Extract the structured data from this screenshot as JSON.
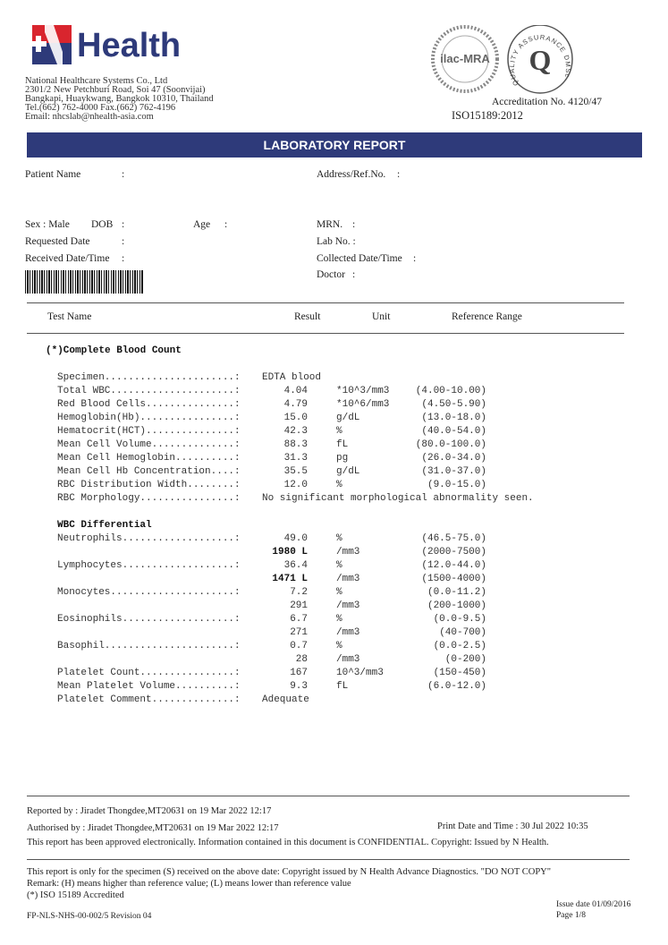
{
  "header": {
    "brand": "Health",
    "company": "National Healthcare Systems Co., Ltd",
    "address1": "2301/2 New Petchburi Road, Soi 47 (Soonvijai)",
    "address2": "Bangkapi, Huaykwang, Bangkok 10310, Thailand",
    "phone": "Tel.(662) 762-4000 Fax.(662) 762-4196",
    "email": "Email: nhcslab@nhealth-asia.com",
    "seal1": "ilac-MRA",
    "seal2": "QUALITY ASSURANCE DMSc",
    "accreditation": "Accreditation No. 4120/47",
    "iso": "ISO15189:2012",
    "colors": {
      "brand_blue": "#2e3a7a",
      "brand_red": "#d9252e"
    }
  },
  "title": "LABORATORY REPORT",
  "patient": {
    "name_label": "Patient Name",
    "colon": ":",
    "address_label": "Address/Ref.No.",
    "sex_label": "Sex : Male",
    "dob_label": "DOB",
    "age_label": "Age",
    "mrn_label": "MRN.",
    "requested_label": "Requested Date",
    "lab_no_label": "Lab No. :",
    "received_label": "Received Date/Time",
    "collected_label": "Collected Date/Time",
    "doctor_label": "Doctor"
  },
  "table_header": {
    "test": "Test Name",
    "result": "Result",
    "unit": "Unit",
    "range": "Reference Range"
  },
  "section_title": "(*)Complete Blood Count",
  "rows": [
    {
      "label": "Specimen......................:",
      "value": "EDTA blood",
      "unit": "",
      "range": "",
      "text": true
    },
    {
      "label": "Total WBC.....................:",
      "value": "4.04",
      "unit": "*10^3/mm3",
      "range": "(4.00-10.00)"
    },
    {
      "label": "Red Blood Cells...............:",
      "value": "4.79",
      "unit": "*10^6/mm3",
      "range": "(4.50-5.90)"
    },
    {
      "label": "Hemoglobin(Hb)................:",
      "value": "15.0",
      "unit": "g/dL",
      "range": "(13.0-18.0)"
    },
    {
      "label": "Hematocrit(HCT)...............:",
      "value": "42.3",
      "unit": "%",
      "range": "(40.0-54.0)"
    },
    {
      "label": "Mean Cell Volume..............:",
      "value": "88.3",
      "unit": "fL",
      "range": "(80.0-100.0)"
    },
    {
      "label": "Mean Cell Hemoglobin..........:",
      "value": "31.3",
      "unit": "pg",
      "range": "(26.0-34.0)"
    },
    {
      "label": "Mean Cell Hb Concentration....:",
      "value": "35.5",
      "unit": "g/dL",
      "range": "(31.0-37.0)"
    },
    {
      "label": "RBC Distribution Width........:",
      "value": "12.0",
      "unit": "%",
      "range": "(9.0-15.0)"
    },
    {
      "label": "RBC Morphology................:",
      "value": "No significant morphological abnormality seen.",
      "unit": "",
      "range": "",
      "text": true
    },
    {
      "label": "WBC Differential",
      "value": "",
      "unit": "",
      "range": "",
      "heading": true
    },
    {
      "label": "Neutrophils...................:",
      "value": "49.0",
      "unit": "%",
      "range": "(46.5-75.0)"
    },
    {
      "label": "",
      "value": "1980 L",
      "unit": "/mm3",
      "range": "(2000-7500)",
      "bold": true
    },
    {
      "label": "Lymphocytes...................:",
      "value": "36.4",
      "unit": "%",
      "range": "(12.0-44.0)"
    },
    {
      "label": "",
      "value": "1471 L",
      "unit": "/mm3",
      "range": "(1500-4000)",
      "bold": true
    },
    {
      "label": "Monocytes.....................:",
      "value": "7.2",
      "unit": "%",
      "range": "(0.0-11.2)"
    },
    {
      "label": "",
      "value": "291",
      "unit": "/mm3",
      "range": "(200-1000)"
    },
    {
      "label": "Eosinophils...................:",
      "value": "6.7",
      "unit": "%",
      "range": "(0.0-9.5)"
    },
    {
      "label": "",
      "value": "271",
      "unit": "/mm3",
      "range": "(40-700)"
    },
    {
      "label": "Basophil......................:",
      "value": "0.7",
      "unit": "%",
      "range": "(0.0-2.5)"
    },
    {
      "label": "",
      "value": "28",
      "unit": "/mm3",
      "range": "(0-200)"
    },
    {
      "label": "Platelet Count................:",
      "value": "167",
      "unit": "10^3/mm3",
      "range": "(150-450)"
    },
    {
      "label": "Mean Platelet Volume..........:",
      "value": "9.3",
      "unit": "fL",
      "range": "(6.0-12.0)"
    },
    {
      "label": "Platelet Comment..............:",
      "value": "Adequate",
      "unit": "",
      "range": "",
      "text": true
    }
  ],
  "footer": {
    "reported": "Reported by : Jiradet Thongdee,MT20631 on 19 Mar 2022 12:17",
    "authorised": "Authorised by : Jiradet Thongdee,MT20631 on 19 Mar 2022 12:17",
    "print": "Print Date and Time : 30 Jul 2022 10:35",
    "approved": "This report has been approved electronically. Information contained in this document is CONFIDENTIAL. Copyright: Issued by N Health.",
    "specimen_note": "This report is only for the specimen (S) received on the above date: Copyright issued by N Health Advance Diagnostics. \"DO NOT COPY\"",
    "remark": "Remark: (H) means higher than reference value; (L) means lower than reference value",
    "iso_note": "(*) ISO 15189 Accredited",
    "form_no": "FP-NLS-NHS-00-002/5 Revision 04",
    "issue_date": "Issue date 01/09/2016",
    "page": "Page 1/8"
  }
}
